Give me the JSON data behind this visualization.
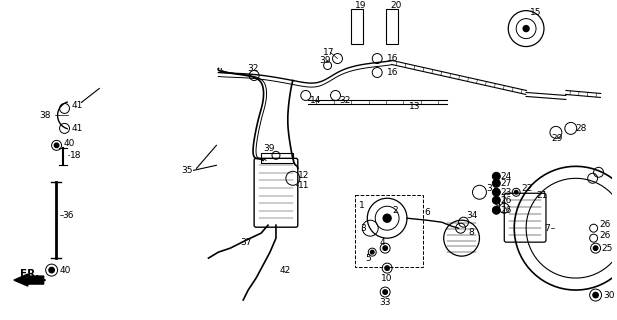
{
  "bg_color": "#ffffff",
  "fig_width": 6.17,
  "fig_height": 3.2,
  "dpi": 100
}
